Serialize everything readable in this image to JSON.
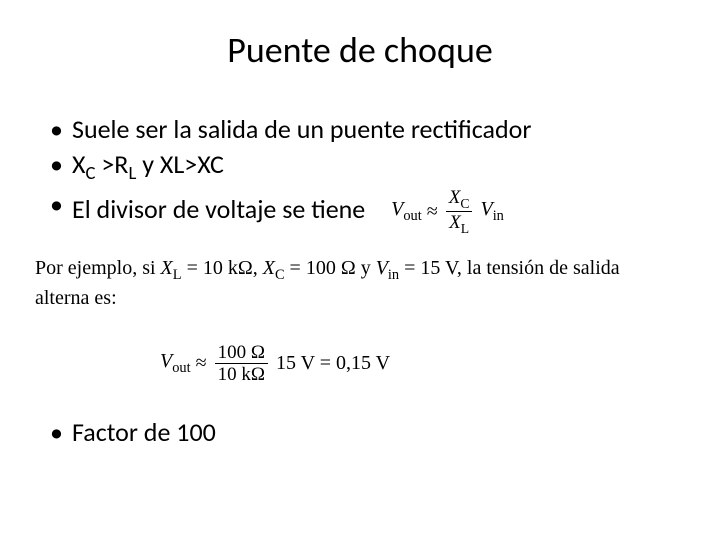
{
  "title": "Puente de choque",
  "bullets": {
    "b0": "Suele ser la salida de un puente rectificador",
    "b1_pre": "X",
    "b1_sub1": "C",
    "b1_mid1": " >R",
    "b1_sub2": "L",
    "b1_mid2": " y  XL>XC",
    "b2": "El divisor de voltaje se tiene",
    "b3": "Factor de 100"
  },
  "formula1": {
    "vout": "V",
    "vout_sub": "out",
    "approx": " ≈ ",
    "num": "X",
    "num_sub": "C",
    "den": "X",
    "den_sub": "L",
    "vin": " V",
    "vin_sub": "in"
  },
  "example": {
    "line1_a": "Por ejemplo, si ",
    "xl": "X",
    "xl_sub": "L",
    "eq1": " = 10 kΩ, ",
    "xc": "X",
    "xc_sub": "C",
    "eq2": " = 100 Ω y ",
    "vin": "V",
    "vin_sub": "in",
    "eq3": " = 15 V, la tensión de salida",
    "line2": "alterna es:"
  },
  "formula2": {
    "vout": "V",
    "vout_sub": "out",
    "approx": " ≈ ",
    "num": "100 Ω",
    "den": "10 kΩ",
    "mid": " 15 V = 0,15 V"
  },
  "colors": {
    "text": "#000000",
    "background": "#ffffff"
  },
  "typography": {
    "title_fontsize": 36,
    "bullet_fontsize": 26,
    "formula_fontsize": 20,
    "title_font": "Calibri",
    "formula_font": "Times New Roman"
  }
}
